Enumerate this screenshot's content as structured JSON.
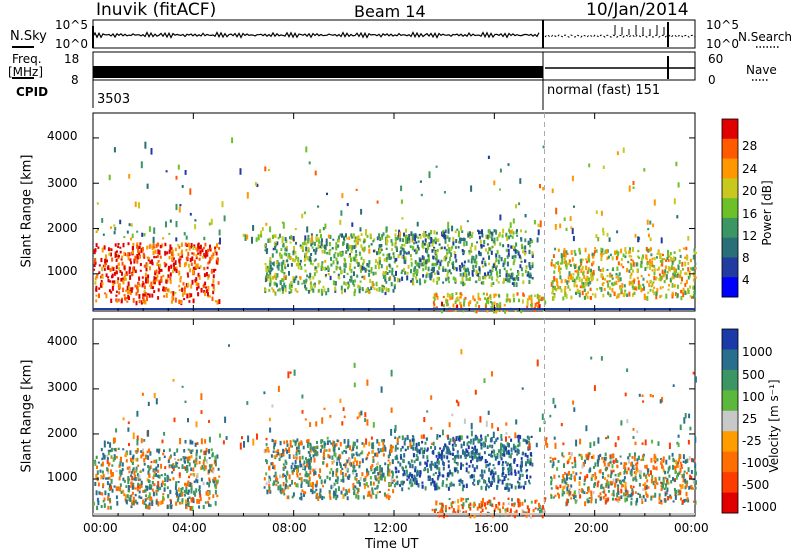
{
  "header": {
    "station": "Inuvik (fitACF)",
    "beam": "Beam 14",
    "date": "10/Jan/2014"
  },
  "left_labels": {
    "nsky": "N.Sky",
    "freq_top": "Freq.",
    "freq_unit": "[MHz]",
    "cpid": "CPID"
  },
  "right_labels": {
    "nsearch": "N.Search",
    "nave": "Nave"
  },
  "nsky_axis": {
    "top": "10^5",
    "bottom": "10^0"
  },
  "freq_axis": {
    "top": "18",
    "bottom": "8"
  },
  "nsearch_axis": {
    "top": "10^5",
    "bottom": "10^0"
  },
  "nave_axis": {
    "top": "60",
    "bottom": "0"
  },
  "cpid": {
    "first": "3503",
    "second": "normal (fast) 151"
  },
  "x_axis": {
    "label": "Time UT",
    "ticks": [
      "00:00",
      "04:00",
      "08:00",
      "12:00",
      "16:00",
      "20:00",
      "00:00"
    ]
  },
  "y_axis": {
    "label": "Slant Range [km]",
    "ticks": [
      "1000",
      "2000",
      "3000",
      "4000"
    ]
  },
  "power_colorbar": {
    "label": "Power [dB]",
    "ticks": [
      "28",
      "24",
      "20",
      "16",
      "12",
      "8",
      "4"
    ],
    "colors": [
      "#e10000",
      "#ff5a00",
      "#ff9800",
      "#c8c81e",
      "#6ec028",
      "#3c9664",
      "#2a6e78",
      "#203ca0",
      "#0000ff"
    ]
  },
  "velocity_colorbar": {
    "label": "Velocity [m s⁻¹]",
    "ticks": [
      "1000",
      "500",
      "100",
      "25",
      "-25",
      "-100",
      "-500",
      "-1000"
    ],
    "colors": [
      "#1a3aa8",
      "#2a6e8e",
      "#3c9664",
      "#5cb83c",
      "#c8c8c8",
      "#ff9c00",
      "#ff6e00",
      "#ff3c00",
      "#e10000"
    ]
  },
  "chart_data": [
    {
      "type": "heatmap",
      "title": "Power [dB]",
      "xlabel": "Time UT",
      "ylabel": "Slant Range [km]",
      "xlim": [
        0,
        24
      ],
      "ylim": [
        180,
        4550
      ],
      "x_ticks": [
        "00:00",
        "04:00",
        "08:00",
        "12:00",
        "16:00",
        "20:00",
        "00:00"
      ],
      "y_ticks": [
        1000,
        2000,
        3000,
        4000
      ],
      "color_scale": [
        4,
        8,
        12,
        16,
        20,
        24,
        28
      ],
      "mode_change_hour": 18.0,
      "echo_regions": [
        {
          "t_start": 0.0,
          "t_end": 5.0,
          "range_min_km": 400,
          "range_max_km": 1700,
          "power_db": 26
        },
        {
          "t_start": 6.8,
          "t_end": 12.0,
          "range_min_km": 600,
          "range_max_km": 1900,
          "power_db": 14
        },
        {
          "t_start": 12.0,
          "t_end": 17.5,
          "range_min_km": 800,
          "range_max_km": 2000,
          "power_db": 12
        },
        {
          "t_start": 13.5,
          "t_end": 18.0,
          "range_min_km": 200,
          "range_max_km": 600,
          "power_db": 20
        },
        {
          "t_start": 18.2,
          "t_end": 24.0,
          "range_min_km": 500,
          "range_max_km": 1600,
          "power_db": 18
        }
      ]
    },
    {
      "type": "heatmap",
      "title": "Velocity [m s⁻¹]",
      "xlabel": "Time UT",
      "ylabel": "Slant Range [km]",
      "xlim": [
        0,
        24
      ],
      "ylim": [
        180,
        4550
      ],
      "x_ticks": [
        "00:00",
        "04:00",
        "08:00",
        "12:00",
        "16:00",
        "20:00",
        "00:00"
      ],
      "y_ticks": [
        1000,
        2000,
        3000,
        4000
      ],
      "color_scale": [
        -1000,
        -500,
        -100,
        -25,
        25,
        100,
        500,
        1000
      ],
      "mode_change_hour": 18.0,
      "echo_regions": [
        {
          "t_start": 0.0,
          "t_end": 5.0,
          "range_min_km": 400,
          "range_max_km": 1700,
          "velocity_ms": 150
        },
        {
          "t_start": 6.8,
          "t_end": 12.0,
          "range_min_km": 600,
          "range_max_km": 1900,
          "velocity_ms": 200
        },
        {
          "t_start": 12.0,
          "t_end": 17.5,
          "range_min_km": 800,
          "range_max_km": 2000,
          "velocity_ms": 800
        },
        {
          "t_start": 13.5,
          "t_end": 18.0,
          "range_min_km": 200,
          "range_max_km": 600,
          "velocity_ms": -300
        },
        {
          "t_start": 18.2,
          "t_end": 24.0,
          "range_min_km": 500,
          "range_max_km": 1600,
          "velocity_ms": 50
        }
      ]
    }
  ]
}
